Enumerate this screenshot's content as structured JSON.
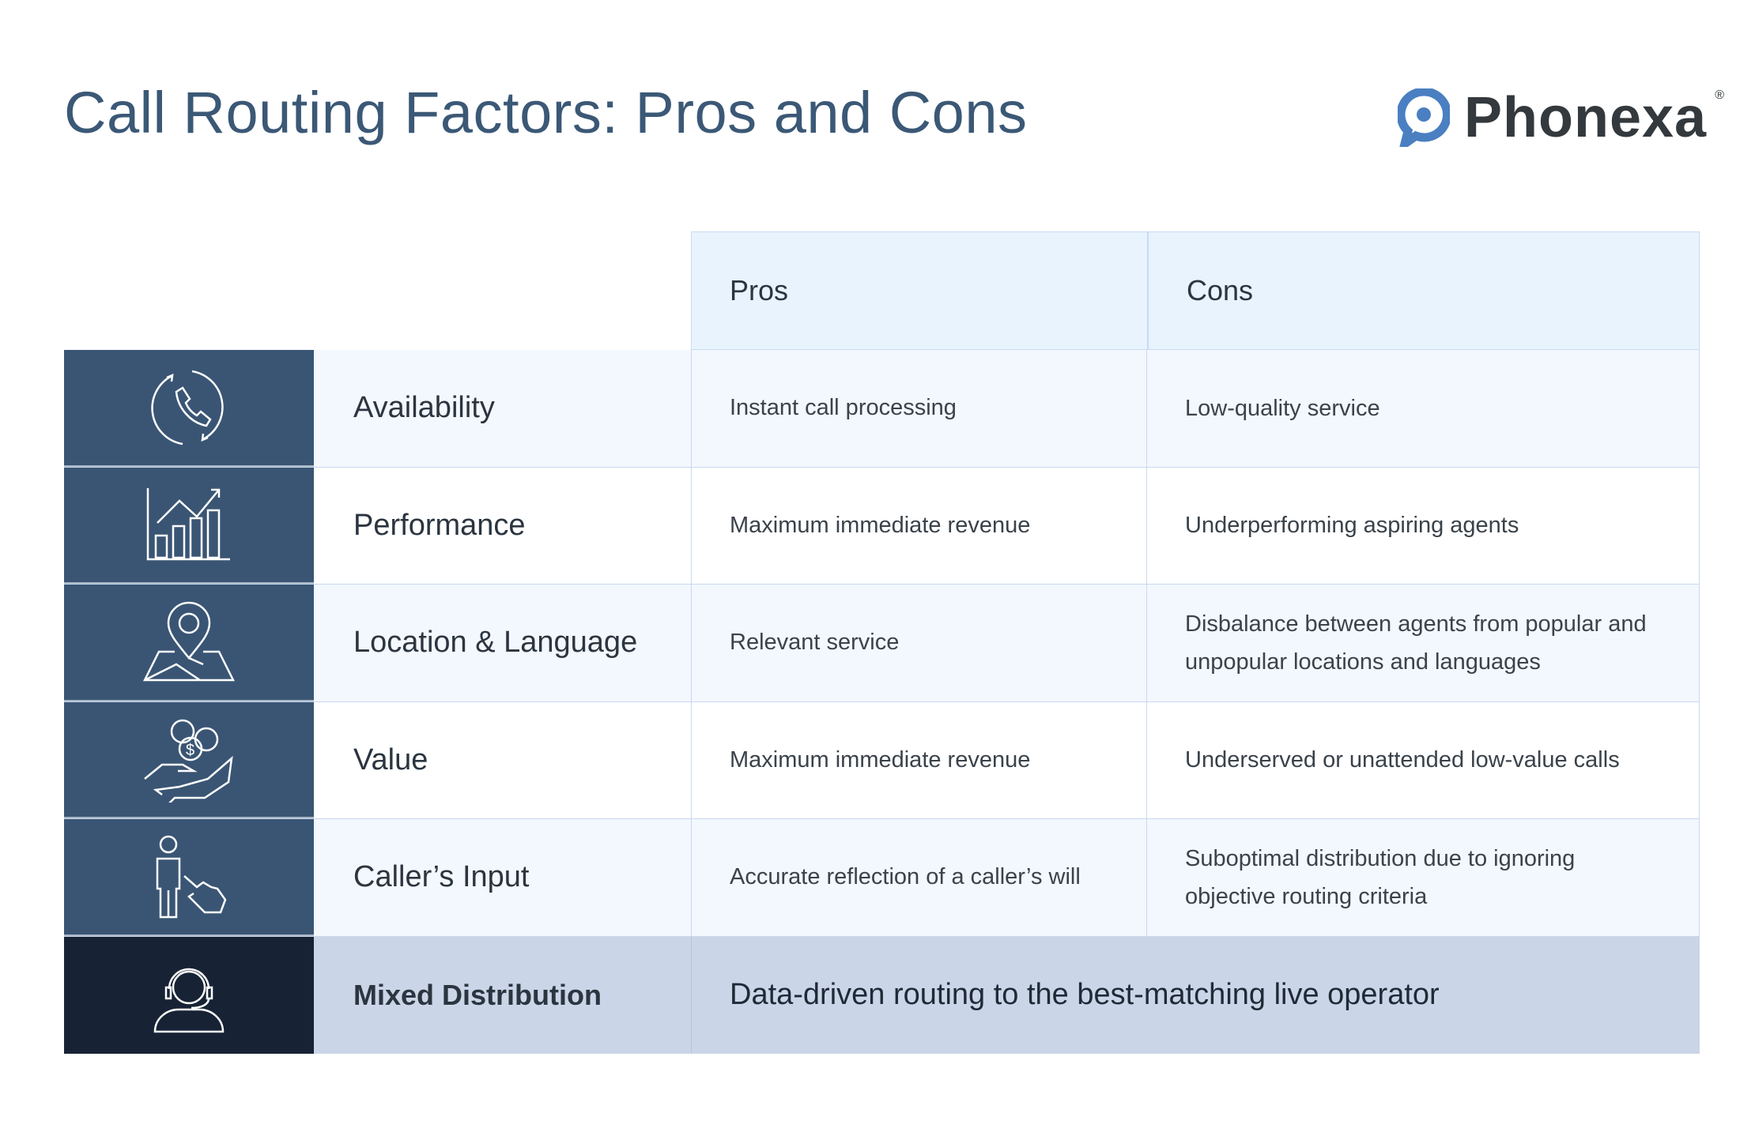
{
  "title": "Call Routing Factors: Pros and Cons",
  "logo": {
    "text": "Phonexa",
    "mark": "®",
    "color": "#4a7fc1"
  },
  "columns": {
    "pros": "Pros",
    "cons": "Cons"
  },
  "rows": [
    {
      "icon": "phone-cycle-icon",
      "factor": "Availability",
      "pros": "Instant call processing",
      "cons": "Low-quality service"
    },
    {
      "icon": "growth-chart-icon",
      "factor": "Performance",
      "pros": "Maximum immediate revenue",
      "cons": "Underperforming aspiring agents"
    },
    {
      "icon": "location-map-icon",
      "factor": "Location & Language",
      "pros": "Relevant  service",
      "cons": "Disbalance between agents from popular and unpopular locations and languages"
    },
    {
      "icon": "money-hand-icon",
      "factor": "Value",
      "pros": "Maximum immediate revenue",
      "cons": "Underserved or unattended low-value calls"
    },
    {
      "icon": "caller-touch-icon",
      "factor": "Caller’s Input",
      "pros": "Accurate reflection of a caller’s will",
      "cons": "Suboptimal distribution due to ignoring objective routing criteria"
    }
  ],
  "summary": {
    "icon": "operator-headset-icon",
    "factor": "Mixed Distribution",
    "description": "Data-driven routing to the best-matching live operator"
  }
}
